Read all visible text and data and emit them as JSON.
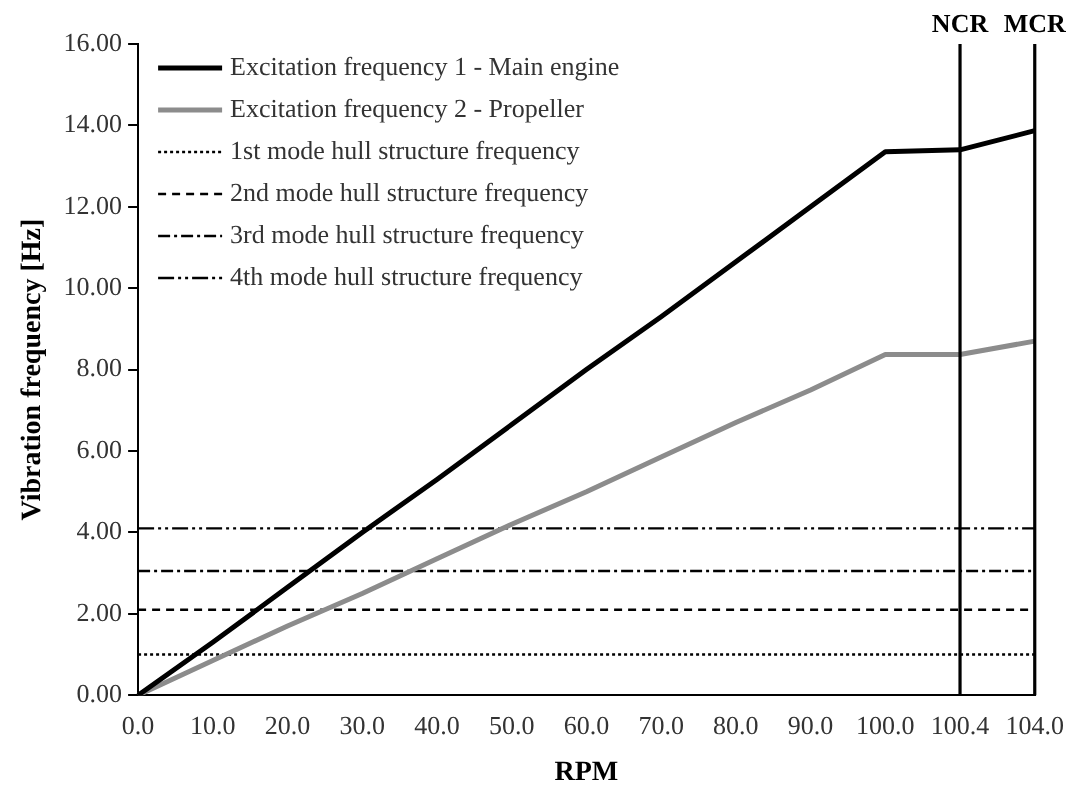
{
  "chart_data": {
    "type": "line",
    "xlabel": "RPM",
    "ylabel": "Vibration frequency [Hz]",
    "categories": [
      "0.0",
      "10.0",
      "20.0",
      "30.0",
      "40.0",
      "50.0",
      "60.0",
      "70.0",
      "80.0",
      "90.0",
      "100.0",
      "100.4",
      "104.0"
    ],
    "series": [
      {
        "name": "Excitation frequency 1 - Main engine",
        "color": "#000000",
        "line_style": "solid",
        "values": [
          0,
          1.3,
          2.65,
          4.0,
          5.3,
          6.65,
          8.0,
          9.3,
          10.65,
          12.0,
          13.35,
          13.4,
          13.87
        ]
      },
      {
        "name": "Excitation frequency 2 - Propeller",
        "color": "#8c8c8c",
        "line_style": "solid",
        "values": [
          0,
          0.85,
          1.7,
          2.5,
          3.35,
          4.2,
          5.0,
          5.85,
          6.7,
          7.5,
          8.37,
          8.37,
          8.7
        ]
      },
      {
        "name": "1st mode hull structure frequency",
        "color": "#000000",
        "line_style": "dotted",
        "values": [
          1.0,
          1.0,
          1.0,
          1.0,
          1.0,
          1.0,
          1.0,
          1.0,
          1.0,
          1.0,
          1.0,
          1.0,
          1.0
        ]
      },
      {
        "name": "2nd mode hull structure frequency",
        "color": "#000000",
        "line_style": "dashed",
        "values": [
          2.1,
          2.1,
          2.1,
          2.1,
          2.1,
          2.1,
          2.1,
          2.1,
          2.1,
          2.1,
          2.1,
          2.1,
          2.1
        ]
      },
      {
        "name": "3rd mode hull structure frequency",
        "color": "#000000",
        "line_style": "dashdot",
        "values": [
          3.05,
          3.05,
          3.05,
          3.05,
          3.05,
          3.05,
          3.05,
          3.05,
          3.05,
          3.05,
          3.05,
          3.05,
          3.05
        ]
      },
      {
        "name": "4th mode hull structure frequency",
        "color": "#000000",
        "line_style": "dashdotdot",
        "values": [
          4.1,
          4.1,
          4.1,
          4.1,
          4.1,
          4.1,
          4.1,
          4.1,
          4.1,
          4.1,
          4.1,
          4.1,
          4.1
        ]
      }
    ],
    "ref_lines": [
      {
        "axis": "x",
        "value": "100.4",
        "label": "NCR",
        "color": "#000000"
      },
      {
        "axis": "x",
        "value": "104.0",
        "label": "MCR",
        "color": "#000000"
      }
    ],
    "ylim": [
      0,
      16
    ],
    "yticks": [
      {
        "value": 0,
        "label": "0.00"
      },
      {
        "value": 2,
        "label": "2.00"
      },
      {
        "value": 4,
        "label": "4.00"
      },
      {
        "value": 6,
        "label": "6.00"
      },
      {
        "value": 8,
        "label": "8.00"
      },
      {
        "value": 10,
        "label": "10.00"
      },
      {
        "value": 12,
        "label": "12.00"
      },
      {
        "value": 14,
        "label": "14.00"
      },
      {
        "value": 16,
        "label": "16.00"
      }
    ],
    "grid": false,
    "legend": "top left",
    "marker": "none"
  }
}
